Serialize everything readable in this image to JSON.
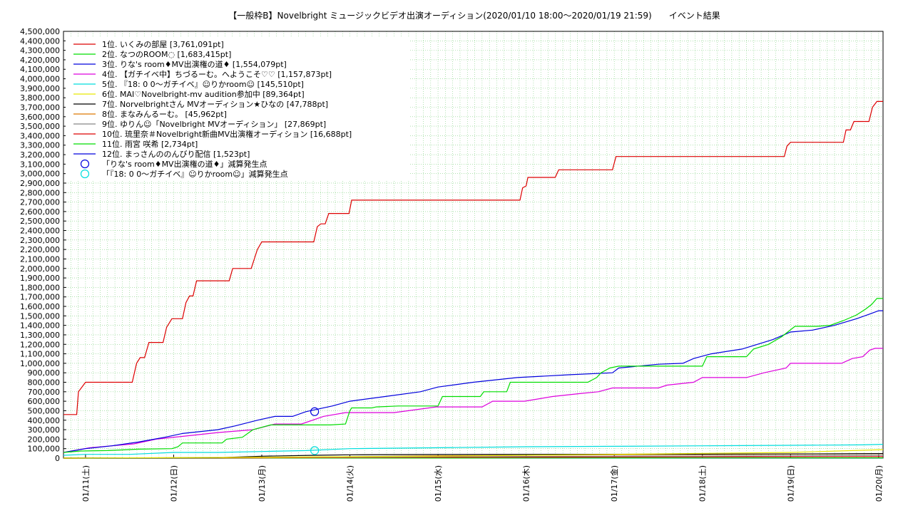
{
  "chart_data": {
    "type": "line",
    "title": "【一般枠B】Novelbright ミュージックビデオ出演オーディション(2020/01/10 18:00〜2020/01/19 21:59)　　イベント結果",
    "xlabel": "",
    "ylabel": "",
    "ylim": [
      0,
      4500000
    ],
    "xlim": [
      "01/10 18:00",
      "01/20 00:00"
    ],
    "grid": true,
    "legend_position": "top-left",
    "y_ticks": [
      "0",
      "100,000",
      "200,000",
      "300,000",
      "400,000",
      "500,000",
      "600,000",
      "700,000",
      "800,000",
      "900,000",
      "1,000,000",
      "1,100,000",
      "1,200,000",
      "1,300,000",
      "1,400,000",
      "1,500,000",
      "1,600,000",
      "1,700,000",
      "1,800,000",
      "1,900,000",
      "2,000,000",
      "2,100,000",
      "2,200,000",
      "2,300,000",
      "2,400,000",
      "2,500,000",
      "2,600,000",
      "2,700,000",
      "2,800,000",
      "2,900,000",
      "3,000,000",
      "3,100,000",
      "3,200,000",
      "3,300,000",
      "3,400,000",
      "3,500,000",
      "3,600,000",
      "3,700,000",
      "3,800,000",
      "3,900,000",
      "4,000,000",
      "4,100,000",
      "4,200,000",
      "4,300,000",
      "4,400,000",
      "4,500,000"
    ],
    "x_ticks": [
      {
        "label": "01/11(土)",
        "day": 1
      },
      {
        "label": "01/12(日)",
        "day": 2
      },
      {
        "label": "01/13(月)",
        "day": 3
      },
      {
        "label": "01/14(火)",
        "day": 4
      },
      {
        "label": "01/15(水)",
        "day": 5
      },
      {
        "label": "01/16(木)",
        "day": 6
      },
      {
        "label": "01/17(金)",
        "day": 7
      },
      {
        "label": "01/18(土)",
        "day": 8
      },
      {
        "label": "01/19(日)",
        "day": 9
      },
      {
        "label": "01/20(月)",
        "day": 10
      }
    ],
    "series": [
      {
        "name": "1位. いくみの部屋 [3,761,091pt]",
        "color": "#dd0000",
        "points": [
          [
            0.75,
            460000
          ],
          [
            0.9,
            460000
          ],
          [
            0.92,
            700000
          ],
          [
            1.0,
            800000
          ],
          [
            1.53,
            800000
          ],
          [
            1.58,
            1000000
          ],
          [
            1.62,
            1060000
          ],
          [
            1.67,
            1060000
          ],
          [
            1.72,
            1220000
          ],
          [
            1.88,
            1220000
          ],
          [
            1.92,
            1380000
          ],
          [
            1.98,
            1470000
          ],
          [
            2.1,
            1470000
          ],
          [
            2.14,
            1640000
          ],
          [
            2.18,
            1710000
          ],
          [
            2.22,
            1710000
          ],
          [
            2.26,
            1870000
          ],
          [
            2.63,
            1870000
          ],
          [
            2.67,
            2000000
          ],
          [
            2.88,
            2000000
          ],
          [
            2.95,
            2200000
          ],
          [
            3.0,
            2280000
          ],
          [
            3.59,
            2280000
          ],
          [
            3.63,
            2440000
          ],
          [
            3.67,
            2470000
          ],
          [
            3.72,
            2470000
          ],
          [
            3.76,
            2580000
          ],
          [
            3.99,
            2580000
          ],
          [
            4.02,
            2720000
          ],
          [
            5.93,
            2720000
          ],
          [
            5.96,
            2850000
          ],
          [
            6.0,
            2870000
          ],
          [
            6.02,
            2960000
          ],
          [
            6.33,
            2960000
          ],
          [
            6.37,
            3040000
          ],
          [
            6.98,
            3040000
          ],
          [
            7.02,
            3180000
          ],
          [
            8.93,
            3180000
          ],
          [
            8.96,
            3290000
          ],
          [
            9.0,
            3330000
          ],
          [
            9.6,
            3330000
          ],
          [
            9.63,
            3460000
          ],
          [
            9.68,
            3460000
          ],
          [
            9.72,
            3550000
          ],
          [
            9.89,
            3550000
          ],
          [
            9.93,
            3700000
          ],
          [
            9.98,
            3761091
          ],
          [
            10.05,
            3761091
          ]
        ]
      },
      {
        "name": "2位. なつのROOM◌ [1,683,415pt]",
        "color": "#00dd00",
        "points": [
          [
            0.75,
            60000
          ],
          [
            0.95,
            75000
          ],
          [
            1.25,
            80000
          ],
          [
            1.5,
            90000
          ],
          [
            1.6,
            95000
          ],
          [
            1.98,
            100000
          ],
          [
            2.05,
            120000
          ],
          [
            2.1,
            160000
          ],
          [
            2.55,
            160000
          ],
          [
            2.6,
            200000
          ],
          [
            2.78,
            220000
          ],
          [
            2.9,
            300000
          ],
          [
            3.1,
            350000
          ],
          [
            3.6,
            350000
          ],
          [
            3.78,
            350000
          ],
          [
            3.95,
            360000
          ],
          [
            4.0,
            500000
          ],
          [
            4.02,
            530000
          ],
          [
            4.25,
            530000
          ],
          [
            4.3,
            540000
          ],
          [
            4.55,
            550000
          ],
          [
            4.75,
            550000
          ],
          [
            5.0,
            550000
          ],
          [
            5.05,
            650000
          ],
          [
            5.48,
            650000
          ],
          [
            5.52,
            700000
          ],
          [
            5.78,
            700000
          ],
          [
            5.82,
            800000
          ],
          [
            6.7,
            800000
          ],
          [
            6.8,
            850000
          ],
          [
            6.85,
            900000
          ],
          [
            6.95,
            950000
          ],
          [
            7.05,
            970000
          ],
          [
            8.0,
            970000
          ],
          [
            8.05,
            1070000
          ],
          [
            8.5,
            1070000
          ],
          [
            8.58,
            1150000
          ],
          [
            8.75,
            1200000
          ],
          [
            8.9,
            1280000
          ],
          [
            9.05,
            1390000
          ],
          [
            9.3,
            1390000
          ],
          [
            9.45,
            1400000
          ],
          [
            9.6,
            1450000
          ],
          [
            9.75,
            1510000
          ],
          [
            9.85,
            1570000
          ],
          [
            9.92,
            1620000
          ],
          [
            9.98,
            1683415
          ],
          [
            10.05,
            1683415
          ]
        ]
      },
      {
        "name": "3位. りな's room♦MV出演権の道♦ [1,554,079pt]",
        "color": "#0000dd",
        "points": [
          [
            0.75,
            60000
          ],
          [
            1.0,
            100000
          ],
          [
            1.3,
            130000
          ],
          [
            1.6,
            170000
          ],
          [
            1.9,
            220000
          ],
          [
            2.1,
            260000
          ],
          [
            2.5,
            300000
          ],
          [
            2.7,
            340000
          ],
          [
            2.95,
            400000
          ],
          [
            3.15,
            440000
          ],
          [
            3.35,
            440000
          ],
          [
            3.5,
            490000
          ],
          [
            3.8,
            550000
          ],
          [
            4.0,
            600000
          ],
          [
            4.4,
            650000
          ],
          [
            4.8,
            700000
          ],
          [
            5.0,
            750000
          ],
          [
            5.4,
            800000
          ],
          [
            5.9,
            850000
          ],
          [
            6.5,
            880000
          ],
          [
            6.98,
            900000
          ],
          [
            7.05,
            950000
          ],
          [
            7.5,
            990000
          ],
          [
            7.78,
            1000000
          ],
          [
            7.9,
            1050000
          ],
          [
            8.1,
            1100000
          ],
          [
            8.45,
            1150000
          ],
          [
            8.8,
            1250000
          ],
          [
            9.0,
            1330000
          ],
          [
            9.25,
            1350000
          ],
          [
            9.5,
            1400000
          ],
          [
            9.75,
            1470000
          ],
          [
            9.9,
            1520000
          ],
          [
            10.0,
            1554079
          ],
          [
            10.05,
            1554079
          ]
        ]
      },
      {
        "name": "4位. 【ガチイベ中】ちづるーむ。へようこそ♡♡ [1,157,873pt]",
        "color": "#dd00dd",
        "points": [
          [
            0.75,
            60000
          ],
          [
            1.05,
            110000
          ],
          [
            1.55,
            150000
          ],
          [
            1.8,
            200000
          ],
          [
            2.2,
            240000
          ],
          [
            2.5,
            270000
          ],
          [
            2.9,
            300000
          ],
          [
            3.15,
            360000
          ],
          [
            3.45,
            360000
          ],
          [
            3.7,
            440000
          ],
          [
            3.95,
            480000
          ],
          [
            4.5,
            480000
          ],
          [
            4.98,
            540000
          ],
          [
            5.5,
            540000
          ],
          [
            5.62,
            600000
          ],
          [
            5.98,
            600000
          ],
          [
            6.3,
            650000
          ],
          [
            6.6,
            680000
          ],
          [
            6.82,
            700000
          ],
          [
            6.98,
            740000
          ],
          [
            7.5,
            740000
          ],
          [
            7.6,
            770000
          ],
          [
            7.9,
            800000
          ],
          [
            8.0,
            850000
          ],
          [
            8.5,
            850000
          ],
          [
            8.7,
            900000
          ],
          [
            8.95,
            950000
          ],
          [
            9.0,
            1000000
          ],
          [
            9.58,
            1000000
          ],
          [
            9.7,
            1050000
          ],
          [
            9.82,
            1070000
          ],
          [
            9.9,
            1140000
          ],
          [
            9.96,
            1157873
          ],
          [
            10.05,
            1157873
          ]
        ]
      },
      {
        "name": "5位. 『18: 0 0〜ガチイベ』☺りかroom☺ [145,510pt]",
        "color": "#00dddd",
        "points": [
          [
            0.75,
            30000
          ],
          [
            1.0,
            40000
          ],
          [
            1.5,
            40000
          ],
          [
            2.0,
            60000
          ],
          [
            2.5,
            60000
          ],
          [
            3.0,
            70000
          ],
          [
            3.5,
            80000
          ],
          [
            4.0,
            100000
          ],
          [
            5.0,
            110000
          ],
          [
            6.0,
            120000
          ],
          [
            7.0,
            125000
          ],
          [
            8.0,
            130000
          ],
          [
            9.0,
            135000
          ],
          [
            9.8,
            140000
          ],
          [
            10.05,
            145510
          ]
        ]
      },
      {
        "name": "6位. MAI♡Novelbright-mv audition参加中 [89,364pt]",
        "color": "#e6e600",
        "points": [
          [
            0.75,
            0
          ],
          [
            3.0,
            10000
          ],
          [
            5.0,
            20000
          ],
          [
            6.0,
            30000
          ],
          [
            7.0,
            40000
          ],
          [
            8.0,
            50000
          ],
          [
            9.0,
            60000
          ],
          [
            9.7,
            80000
          ],
          [
            10.05,
            89364
          ]
        ]
      },
      {
        "name": "7位. Norvelbrightさん MVオーディション★ひなの [47,788pt]",
        "color": "#000000",
        "points": [
          [
            0.75,
            0
          ],
          [
            2.5,
            5000
          ],
          [
            3.0,
            20000
          ],
          [
            3.6,
            30000
          ],
          [
            4.0,
            35000
          ],
          [
            5.0,
            38000
          ],
          [
            6.0,
            40000
          ],
          [
            8.0,
            42000
          ],
          [
            9.5,
            45000
          ],
          [
            10.05,
            47788
          ]
        ]
      },
      {
        "name": "8位. まなみんるーむ。 [45,962pt]",
        "color": "#dd7700",
        "points": [
          [
            0.75,
            0
          ],
          [
            3.0,
            5000
          ],
          [
            4.0,
            15000
          ],
          [
            5.0,
            25000
          ],
          [
            6.0,
            30000
          ],
          [
            7.0,
            35000
          ],
          [
            8.0,
            38000
          ],
          [
            9.0,
            42000
          ],
          [
            10.05,
            45962
          ]
        ]
      },
      {
        "name": "9位. ゆりん☺「Novelbright MVオーディション」 [27,869pt]",
        "color": "#888888",
        "points": [
          [
            0.75,
            0
          ],
          [
            3.0,
            5000
          ],
          [
            4.0,
            10000
          ],
          [
            5.0,
            15000
          ],
          [
            6.0,
            18000
          ],
          [
            7.0,
            20000
          ],
          [
            8.0,
            22000
          ],
          [
            9.0,
            25000
          ],
          [
            10.05,
            27869
          ]
        ]
      },
      {
        "name": "10位. 琉里奈＃Novelbright新曲MV出演権オーディション [16,688pt]",
        "color": "#dd0000",
        "points": [
          [
            0.75,
            0
          ],
          [
            3.0,
            3000
          ],
          [
            5.0,
            8000
          ],
          [
            7.0,
            12000
          ],
          [
            9.0,
            15000
          ],
          [
            10.05,
            16688
          ]
        ]
      },
      {
        "name": "11位. 雨宮 咲希 [2,734pt]",
        "color": "#00dd00",
        "points": [
          [
            0.75,
            0
          ],
          [
            5.0,
            1000
          ],
          [
            10.05,
            2734
          ]
        ]
      },
      {
        "name": "12位. まっさんののんびり配信 [1,523pt]",
        "color": "#0000dd",
        "points": [
          [
            0.75,
            0
          ],
          [
            5.0,
            800
          ],
          [
            10.05,
            1523
          ]
        ]
      }
    ],
    "markers": [
      {
        "name": "「りな's room♦MV出演権の道♦」減算発生点",
        "color": "#0000dd",
        "x": 3.6,
        "y": 490000
      },
      {
        "name": "「『18: 0 0〜ガチイベ』☺りかroom☺」減算発生点",
        "color": "#00dddd",
        "x": 3.6,
        "y": 80000
      }
    ]
  }
}
